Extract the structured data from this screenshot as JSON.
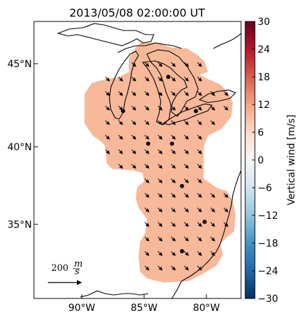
{
  "map": {
    "title": "2013/05/08 02:00:00 UT",
    "x_ticks": [
      "90°W",
      "85°W",
      "80°W"
    ],
    "y_ticks": [
      "45°N",
      "40°N",
      "35°N"
    ],
    "lon_range": [
      -94,
      -77.5
    ],
    "lat_range": [
      30.5,
      47.5
    ],
    "field_fill_color": "#f7b99a",
    "coastline_color": "#000000",
    "station_color": "#000000",
    "wind_arrow_direction": "southeast",
    "scale_value": "200",
    "scale_unit_top": "m",
    "scale_unit_bottom": "s",
    "stations": [
      {
        "lon": -83.3,
        "lat": 44.1
      },
      {
        "lon": -86.9,
        "lat": 42.0
      },
      {
        "lon": -81.1,
        "lat": 42.0
      },
      {
        "lon": -84.9,
        "lat": 40.0
      },
      {
        "lon": -83.0,
        "lat": 40.0
      },
      {
        "lon": -82.2,
        "lat": 37.4
      },
      {
        "lon": -80.4,
        "lat": 35.2
      },
      {
        "lon": -82.2,
        "lat": 33.4
      }
    ]
  },
  "colorbar": {
    "label": "Vertical wind [m/s]",
    "ticks": [
      "30",
      "24",
      "18",
      "12",
      "6",
      "0",
      "−6",
      "−12",
      "−18",
      "−24",
      "−30"
    ],
    "vmin": -30,
    "vmax": 30,
    "colormap": "RdBu_r"
  }
}
